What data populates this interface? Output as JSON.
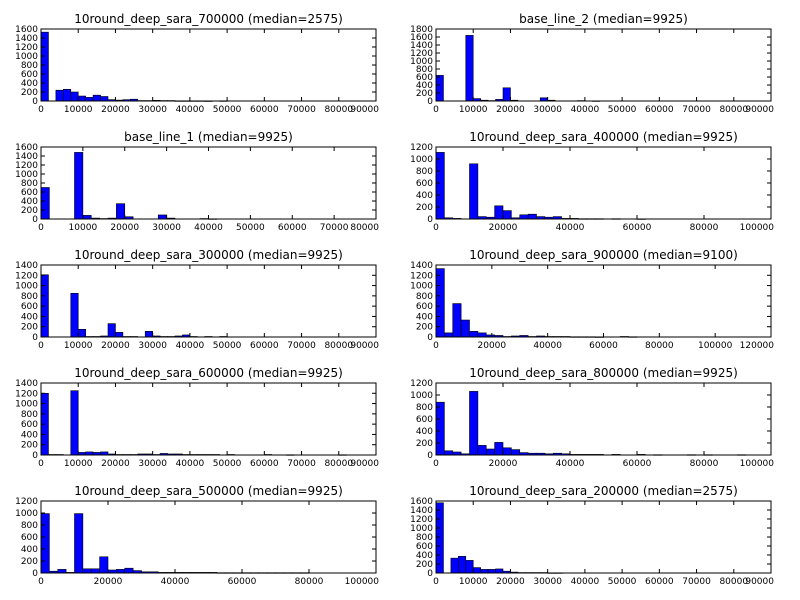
{
  "figure": {
    "background": "#ffffff",
    "bar_color": "#0000ff",
    "edge_color": "#000000"
  },
  "chart_data": [
    {
      "type": "bar",
      "title": "10round_deep_sara_700000 (median=2575)",
      "xlabel": "",
      "ylabel": "",
      "xlim": [
        0,
        90000
      ],
      "ylim": [
        0,
        1600
      ],
      "xticks": [
        0,
        10000,
        20000,
        30000,
        40000,
        50000,
        60000,
        70000,
        80000,
        90000
      ],
      "yticks": [
        0,
        200,
        400,
        600,
        800,
        1000,
        1200,
        1400,
        1600
      ],
      "bin_width": 2000,
      "bins": [
        [
          0,
          1530
        ],
        [
          2000,
          0
        ],
        [
          4000,
          240
        ],
        [
          6000,
          260
        ],
        [
          8000,
          200
        ],
        [
          10000,
          110
        ],
        [
          12000,
          80
        ],
        [
          14000,
          130
        ],
        [
          16000,
          100
        ],
        [
          18000,
          30
        ],
        [
          20000,
          20
        ],
        [
          22000,
          30
        ],
        [
          24000,
          40
        ],
        [
          26000,
          10
        ],
        [
          28000,
          10
        ],
        [
          30000,
          15
        ],
        [
          32000,
          10
        ],
        [
          34000,
          10
        ],
        [
          36000,
          5
        ],
        [
          38000,
          5
        ],
        [
          40000,
          5
        ],
        [
          42000,
          5
        ],
        [
          44000,
          3
        ],
        [
          48000,
          5
        ]
      ]
    },
    {
      "type": "bar",
      "title": "base_line_2 (median=9925)",
      "xlabel": "",
      "ylabel": "",
      "xlim": [
        0,
        90000
      ],
      "ylim": [
        0,
        1800
      ],
      "xticks": [
        0,
        10000,
        20000,
        30000,
        40000,
        50000,
        60000,
        70000,
        80000,
        90000
      ],
      "yticks": [
        0,
        200,
        400,
        600,
        800,
        1000,
        1200,
        1400,
        1600,
        1800
      ],
      "bin_width": 2000,
      "bins": [
        [
          0,
          640
        ],
        [
          2000,
          0
        ],
        [
          4000,
          0
        ],
        [
          6000,
          0
        ],
        [
          8000,
          1640
        ],
        [
          10000,
          60
        ],
        [
          12000,
          20
        ],
        [
          14000,
          10
        ],
        [
          16000,
          40
        ],
        [
          18000,
          330
        ],
        [
          20000,
          20
        ],
        [
          22000,
          0
        ],
        [
          24000,
          0
        ],
        [
          26000,
          0
        ],
        [
          28000,
          80
        ],
        [
          30000,
          20
        ],
        [
          32000,
          0
        ],
        [
          34000,
          0
        ],
        [
          36000,
          0
        ],
        [
          38000,
          10
        ],
        [
          40000,
          0
        ],
        [
          42000,
          5
        ]
      ]
    },
    {
      "type": "bar",
      "title": "base_line_1 (median=9925)",
      "xlabel": "",
      "ylabel": "",
      "xlim": [
        0,
        80000
      ],
      "ylim": [
        0,
        1600
      ],
      "xticks": [
        0,
        10000,
        20000,
        30000,
        40000,
        50000,
        60000,
        70000,
        80000
      ],
      "yticks": [
        0,
        200,
        400,
        600,
        800,
        1000,
        1200,
        1400,
        1600
      ],
      "bin_width": 2000,
      "bins": [
        [
          0,
          700
        ],
        [
          2000,
          0
        ],
        [
          4000,
          0
        ],
        [
          6000,
          0
        ],
        [
          8000,
          1480
        ],
        [
          10000,
          80
        ],
        [
          12000,
          20
        ],
        [
          14000,
          10
        ],
        [
          16000,
          20
        ],
        [
          18000,
          340
        ],
        [
          20000,
          50
        ],
        [
          22000,
          0
        ],
        [
          24000,
          0
        ],
        [
          26000,
          0
        ],
        [
          28000,
          90
        ],
        [
          30000,
          20
        ],
        [
          32000,
          0
        ],
        [
          34000,
          0
        ],
        [
          36000,
          0
        ],
        [
          38000,
          10
        ],
        [
          40000,
          5
        ]
      ]
    },
    {
      "type": "bar",
      "title": "10round_deep_sara_400000 (median=9925)",
      "xlabel": "",
      "ylabel": "",
      "xlim": [
        0,
        100000
      ],
      "ylim": [
        0,
        1200
      ],
      "xticks": [
        0,
        20000,
        40000,
        60000,
        80000,
        100000
      ],
      "yticks": [
        0,
        200,
        400,
        600,
        800,
        1000,
        1200
      ],
      "bin_width": 2500,
      "bins": [
        [
          0,
          1110
        ],
        [
          2500,
          20
        ],
        [
          5000,
          10
        ],
        [
          7500,
          0
        ],
        [
          10000,
          920
        ],
        [
          12500,
          40
        ],
        [
          15000,
          30
        ],
        [
          17500,
          220
        ],
        [
          20000,
          140
        ],
        [
          22500,
          20
        ],
        [
          25000,
          70
        ],
        [
          27500,
          80
        ],
        [
          30000,
          40
        ],
        [
          32500,
          30
        ],
        [
          35000,
          40
        ],
        [
          37500,
          10
        ],
        [
          40000,
          10
        ],
        [
          42500,
          5
        ],
        [
          45000,
          5
        ],
        [
          47500,
          5
        ],
        [
          52500,
          5
        ],
        [
          60000,
          3
        ]
      ]
    },
    {
      "type": "bar",
      "title": "10round_deep_sara_300000 (median=9925)",
      "xlabel": "",
      "ylabel": "",
      "xlim": [
        0,
        90000
      ],
      "ylim": [
        0,
        1400
      ],
      "xticks": [
        0,
        10000,
        20000,
        30000,
        40000,
        50000,
        60000,
        70000,
        80000,
        90000
      ],
      "yticks": [
        0,
        200,
        400,
        600,
        800,
        1000,
        1200,
        1400
      ],
      "bin_width": 2000,
      "bins": [
        [
          0,
          1210
        ],
        [
          2000,
          0
        ],
        [
          4000,
          0
        ],
        [
          6000,
          0
        ],
        [
          8000,
          850
        ],
        [
          10000,
          150
        ],
        [
          12000,
          10
        ],
        [
          14000,
          10
        ],
        [
          16000,
          20
        ],
        [
          18000,
          260
        ],
        [
          20000,
          90
        ],
        [
          22000,
          10
        ],
        [
          24000,
          10
        ],
        [
          26000,
          0
        ],
        [
          28000,
          110
        ],
        [
          30000,
          20
        ],
        [
          32000,
          10
        ],
        [
          34000,
          10
        ],
        [
          36000,
          20
        ],
        [
          38000,
          40
        ],
        [
          40000,
          10
        ],
        [
          44000,
          10
        ],
        [
          48000,
          10
        ]
      ]
    },
    {
      "type": "bar",
      "title": "10round_deep_sara_900000 (median=9100)",
      "xlabel": "",
      "ylabel": "",
      "xlim": [
        0,
        120000
      ],
      "ylim": [
        0,
        1400
      ],
      "xticks": [
        0,
        20000,
        40000,
        60000,
        80000,
        100000,
        120000
      ],
      "yticks": [
        0,
        200,
        400,
        600,
        800,
        1000,
        1200,
        1400
      ],
      "bin_width": 3000,
      "bins": [
        [
          0,
          1330
        ],
        [
          3000,
          80
        ],
        [
          6000,
          650
        ],
        [
          9000,
          330
        ],
        [
          12000,
          110
        ],
        [
          15000,
          80
        ],
        [
          18000,
          40
        ],
        [
          21000,
          30
        ],
        [
          24000,
          10
        ],
        [
          27000,
          20
        ],
        [
          30000,
          30
        ],
        [
          33000,
          10
        ],
        [
          36000,
          20
        ],
        [
          39000,
          10
        ],
        [
          42000,
          10
        ],
        [
          45000,
          10
        ],
        [
          48000,
          5
        ],
        [
          51000,
          5
        ],
        [
          54000,
          5
        ],
        [
          57000,
          3
        ],
        [
          66000,
          10
        ],
        [
          69000,
          5
        ]
      ]
    },
    {
      "type": "bar",
      "title": "10round_deep_sara_600000 (median=9925)",
      "xlabel": "",
      "ylabel": "",
      "xlim": [
        0,
        90000
      ],
      "ylim": [
        0,
        1400
      ],
      "xticks": [
        0,
        10000,
        20000,
        30000,
        40000,
        50000,
        60000,
        70000,
        80000,
        90000
      ],
      "yticks": [
        0,
        200,
        400,
        600,
        800,
        1000,
        1200,
        1400
      ],
      "bin_width": 2000,
      "bins": [
        [
          0,
          1200
        ],
        [
          2000,
          10
        ],
        [
          4000,
          10
        ],
        [
          6000,
          0
        ],
        [
          8000,
          1250
        ],
        [
          10000,
          50
        ],
        [
          12000,
          60
        ],
        [
          14000,
          50
        ],
        [
          16000,
          60
        ],
        [
          18000,
          20
        ],
        [
          20000,
          10
        ],
        [
          22000,
          10
        ],
        [
          24000,
          10
        ],
        [
          26000,
          20
        ],
        [
          28000,
          20
        ],
        [
          30000,
          10
        ],
        [
          32000,
          30
        ],
        [
          34000,
          20
        ],
        [
          36000,
          20
        ],
        [
          38000,
          10
        ],
        [
          40000,
          10
        ],
        [
          42000,
          10
        ],
        [
          44000,
          10
        ],
        [
          46000,
          10
        ],
        [
          50000,
          10
        ],
        [
          60000,
          10
        ],
        [
          66000,
          5
        ],
        [
          80000,
          5
        ]
      ]
    },
    {
      "type": "bar",
      "title": "10round_deep_sara_800000 (median=9925)",
      "xlabel": "",
      "ylabel": "",
      "xlim": [
        0,
        100000
      ],
      "ylim": [
        0,
        1200
      ],
      "xticks": [
        0,
        20000,
        40000,
        60000,
        80000,
        100000
      ],
      "yticks": [
        0,
        200,
        400,
        600,
        800,
        1000,
        1200
      ],
      "bin_width": 2500,
      "bins": [
        [
          0,
          880
        ],
        [
          2500,
          70
        ],
        [
          5000,
          50
        ],
        [
          7500,
          20
        ],
        [
          10000,
          1060
        ],
        [
          12500,
          160
        ],
        [
          15000,
          100
        ],
        [
          17500,
          210
        ],
        [
          20000,
          120
        ],
        [
          22500,
          90
        ],
        [
          25000,
          40
        ],
        [
          27500,
          30
        ],
        [
          30000,
          30
        ],
        [
          32500,
          20
        ],
        [
          35000,
          30
        ],
        [
          37500,
          20
        ],
        [
          40000,
          10
        ],
        [
          42500,
          10
        ],
        [
          45000,
          10
        ],
        [
          47500,
          10
        ],
        [
          52500,
          10
        ],
        [
          60000,
          10
        ],
        [
          65000,
          5
        ],
        [
          75000,
          5
        ],
        [
          80000,
          5
        ],
        [
          90000,
          5
        ]
      ]
    },
    {
      "type": "bar",
      "title": "10round_deep_sara_500000 (median=9925)",
      "xlabel": "",
      "ylabel": "",
      "xlim": [
        0,
        100000
      ],
      "ylim": [
        0,
        1200
      ],
      "xticks": [
        0,
        20000,
        40000,
        60000,
        80000,
        100000
      ],
      "yticks": [
        0,
        200,
        400,
        600,
        800,
        1000,
        1200
      ],
      "bin_width": 2500,
      "bins": [
        [
          0,
          990
        ],
        [
          2500,
          30
        ],
        [
          5000,
          60
        ],
        [
          7500,
          10
        ],
        [
          10000,
          990
        ],
        [
          12500,
          70
        ],
        [
          15000,
          70
        ],
        [
          17500,
          270
        ],
        [
          20000,
          50
        ],
        [
          22500,
          60
        ],
        [
          25000,
          80
        ],
        [
          27500,
          40
        ],
        [
          30000,
          20
        ],
        [
          32500,
          20
        ],
        [
          35000,
          10
        ],
        [
          37500,
          10
        ],
        [
          40000,
          10
        ],
        [
          42500,
          10
        ],
        [
          45000,
          10
        ],
        [
          47500,
          10
        ],
        [
          50000,
          10
        ],
        [
          52500,
          5
        ],
        [
          55000,
          5
        ],
        [
          57500,
          5
        ],
        [
          60000,
          5
        ],
        [
          62500,
          5
        ],
        [
          65000,
          5
        ],
        [
          67500,
          5
        ],
        [
          70000,
          5
        ],
        [
          72500,
          5
        ],
        [
          75000,
          5
        ],
        [
          77500,
          5
        ]
      ]
    },
    {
      "type": "bar",
      "title": "10round_deep_sara_200000 (median=2575)",
      "xlabel": "",
      "ylabel": "",
      "xlim": [
        0,
        90000
      ],
      "ylim": [
        0,
        1600
      ],
      "xticks": [
        0,
        10000,
        20000,
        30000,
        40000,
        50000,
        60000,
        70000,
        80000,
        90000
      ],
      "yticks": [
        0,
        200,
        400,
        600,
        800,
        1000,
        1200,
        1400,
        1600
      ],
      "bin_width": 2000,
      "bins": [
        [
          0,
          1560
        ],
        [
          2000,
          0
        ],
        [
          4000,
          330
        ],
        [
          6000,
          370
        ],
        [
          8000,
          280
        ],
        [
          10000,
          120
        ],
        [
          12000,
          80
        ],
        [
          14000,
          80
        ],
        [
          16000,
          90
        ],
        [
          18000,
          40
        ],
        [
          20000,
          20
        ],
        [
          22000,
          10
        ],
        [
          24000,
          10
        ],
        [
          26000,
          10
        ],
        [
          28000,
          10
        ],
        [
          30000,
          5
        ],
        [
          32000,
          5
        ]
      ]
    }
  ]
}
